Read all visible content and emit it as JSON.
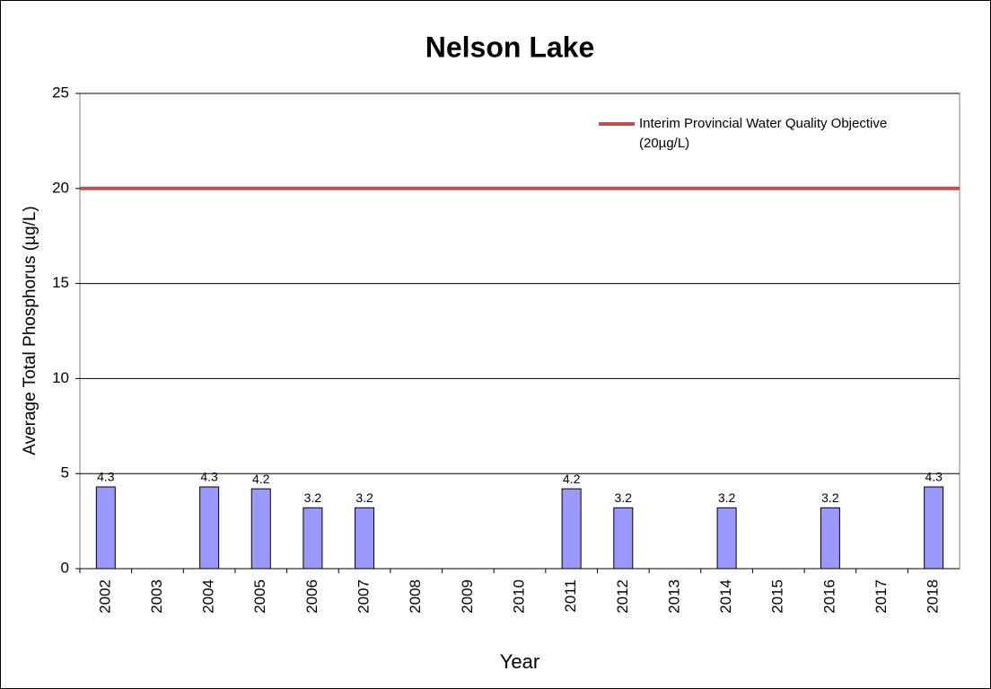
{
  "chart_data": {
    "type": "bar",
    "title": "Nelson Lake",
    "x_label": "Year",
    "y_label": "Average Total Phosphorus (µg/L)",
    "categories": [
      "2002",
      "2003",
      "2004",
      "2005",
      "2006",
      "2007",
      "2008",
      "2009",
      "2010",
      "2011",
      "2012",
      "2013",
      "2014",
      "2015",
      "2016",
      "2017",
      "2018"
    ],
    "values": [
      4.3,
      null,
      4.3,
      4.2,
      3.2,
      3.2,
      null,
      null,
      null,
      4.2,
      3.2,
      null,
      3.2,
      null,
      3.2,
      null,
      4.3
    ],
    "color": "#9999ff",
    "reference_line": {
      "name": "Interim Provincial Water Quality Objective (20µg/L)",
      "value": 20,
      "color": "#c0504d"
    },
    "ylim": [
      0,
      25
    ],
    "yticks": [
      0,
      5,
      10,
      15,
      20,
      25
    ],
    "grid": true
  }
}
